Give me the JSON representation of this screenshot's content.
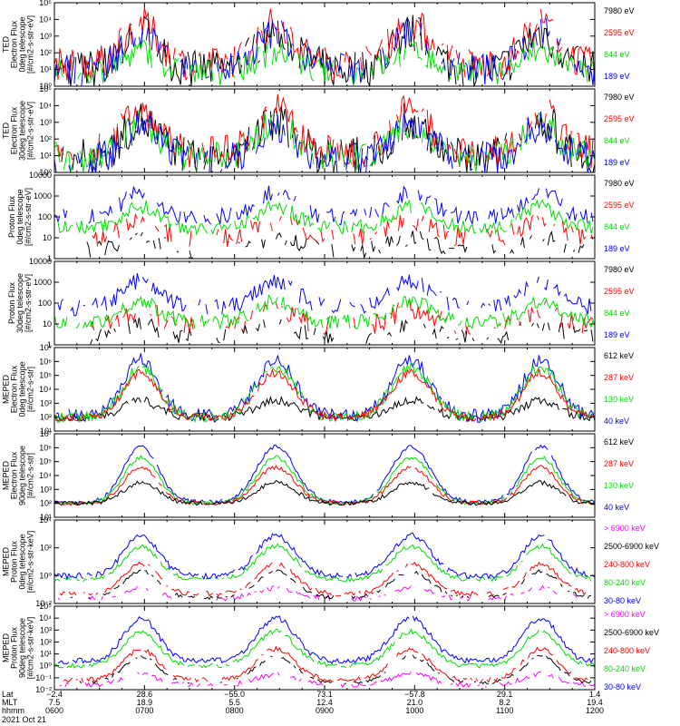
{
  "colors": {
    "blue": "#0000ff",
    "green": "#00dd00",
    "red": "#ff0000",
    "black": "#000000",
    "magenta": "#ff00ff",
    "axis": "#000000"
  },
  "chart_data": [
    {
      "type": "line",
      "ylabel": [
        "TED",
        "Electron Flux",
        "0deg telescope",
        "[#/cm2-s-str-eV]"
      ],
      "ylim": [
        1,
        100000
      ],
      "log": true,
      "y_ticks": [
        "10⁰",
        "10¹",
        "10²",
        "10³",
        "10⁴",
        "10⁵"
      ],
      "series": [
        {
          "name": "7980 eV",
          "color": "#000000",
          "base": 1.0,
          "amp": 2.2,
          "noise": 1.2,
          "gap": 0.25
        },
        {
          "name": "2595 eV",
          "color": "#ff0000",
          "base": 1.3,
          "amp": 2.5,
          "noise": 1.0,
          "gap": 0.3
        },
        {
          "name": "844 eV",
          "color": "#00dd00",
          "base": 0.8,
          "amp": 1.3,
          "noise": 0.8,
          "gap": 0.35
        },
        {
          "name": "189 eV",
          "color": "#0000ff",
          "base": 1.0,
          "amp": 2.2,
          "noise": 1.0,
          "gap": 0.4
        }
      ]
    },
    {
      "type": "line",
      "ylabel": [
        "TED",
        "Electron Flux",
        "30deg telescope",
        "[#/cm2-s-str-eV]"
      ],
      "ylim": [
        1,
        100000
      ],
      "log": true,
      "y_ticks": [
        "10⁰",
        "10¹",
        "10²",
        "10³",
        "10⁴",
        "10⁵"
      ],
      "series": [
        {
          "name": "7980 eV",
          "color": "#000000",
          "base": 0.9,
          "amp": 2.2,
          "noise": 1.2,
          "gap": 0.3
        },
        {
          "name": "2595 eV",
          "color": "#ff0000",
          "base": 1.2,
          "amp": 2.6,
          "noise": 1.0,
          "gap": 0.3
        },
        {
          "name": "844 eV",
          "color": "#00dd00",
          "base": 0.9,
          "amp": 2.0,
          "noise": 0.9,
          "gap": 0.35
        },
        {
          "name": "189 eV",
          "color": "#0000ff",
          "base": 0.8,
          "amp": 2.0,
          "noise": 1.0,
          "gap": 0.4
        }
      ]
    },
    {
      "type": "line",
      "ylabel": [
        "Proton Flux",
        "0deg telescope",
        "[#/cm2-s-str-eV]"
      ],
      "ylim": [
        1,
        10000
      ],
      "log": true,
      "y_ticks": [
        "1",
        "10",
        "100",
        "1000",
        "10000"
      ],
      "series": [
        {
          "name": "7980 eV",
          "color": "#000000",
          "base": 0.4,
          "amp": 0.6,
          "noise": 0.4,
          "gap": 0.85
        },
        {
          "name": "2595 eV",
          "color": "#ff0000",
          "base": 1.0,
          "amp": 0.8,
          "noise": 0.5,
          "gap": 0.8
        },
        {
          "name": "189 eV",
          "color": "#0000ff",
          "base": 2.0,
          "amp": 1.2,
          "noise": 0.4,
          "gap": 0.45
        },
        {
          "name": "844 eV",
          "color": "#00dd00",
          "base": 1.5,
          "amp": 1.0,
          "noise": 0.35,
          "gap": 0.15
        }
      ]
    },
    {
      "type": "line",
      "ylabel": [
        "Proton Flux",
        "30deg telescope",
        "[#/cm2-s-str-eV]"
      ],
      "ylim": [
        1,
        10000
      ],
      "log": true,
      "y_ticks": [
        "1",
        "10",
        "100",
        "1000",
        "10000"
      ],
      "series": [
        {
          "name": "7980 eV",
          "color": "#000000",
          "base": 0.4,
          "amp": 0.6,
          "noise": 0.4,
          "gap": 0.85
        },
        {
          "name": "2595 eV",
          "color": "#ff0000",
          "base": 0.9,
          "amp": 0.8,
          "noise": 0.5,
          "gap": 0.8
        },
        {
          "name": "189 eV",
          "color": "#0000ff",
          "base": 1.8,
          "amp": 1.3,
          "noise": 0.4,
          "gap": 0.45
        },
        {
          "name": "844 eV",
          "color": "#00dd00",
          "base": 1.1,
          "amp": 1.0,
          "noise": 0.35,
          "gap": 0.15
        }
      ]
    },
    {
      "type": "line",
      "ylabel": [
        "MEPED",
        "Electron Flux",
        "0deg telescope",
        "[#/cm2-s-str]"
      ],
      "ylim": [
        10,
        10000000
      ],
      "log": true,
      "y_ticks": [
        "10¹",
        "10²",
        "10³",
        "10⁴",
        "10⁵",
        "10⁶",
        "10⁷"
      ],
      "series": [
        {
          "name": "612 keV",
          "color": "#000000",
          "base": 2.0,
          "amp": 1.2,
          "noise": 0.3,
          "gap": 0.05
        },
        {
          "name": "40 keV",
          "color": "#0000ff",
          "base": 2.1,
          "amp": 4.0,
          "noise": 0.5,
          "gap": 0.05
        },
        {
          "name": "130 keV",
          "color": "#00dd00",
          "base": 2.0,
          "amp": 3.6,
          "noise": 0.4,
          "gap": 0.05
        },
        {
          "name": "287 keV",
          "color": "#ff0000",
          "base": 2.0,
          "amp": 3.2,
          "noise": 0.3,
          "gap": 0.05
        }
      ]
    },
    {
      "type": "line",
      "ylabel": [
        "MEPED",
        "Electron Flux",
        "90deg telescope",
        "[#/cm2-s-str]"
      ],
      "ylim": [
        10,
        10000000
      ],
      "log": true,
      "y_ticks": [
        "10¹",
        "10²",
        "10³",
        "10⁴",
        "10⁵",
        "10⁶",
        "10⁷"
      ],
      "series": [
        {
          "name": "40 keV",
          "color": "#0000ff",
          "base": 2.1,
          "amp": 4.0,
          "noise": 0.15,
          "gap": 0.05
        },
        {
          "name": "130 keV",
          "color": "#00dd00",
          "base": 2.0,
          "amp": 3.3,
          "noise": 0.15,
          "gap": 0.05
        },
        {
          "name": "287 keV",
          "color": "#ff0000",
          "base": 2.0,
          "amp": 2.6,
          "noise": 0.15,
          "gap": 0.05
        },
        {
          "name": "612 keV",
          "color": "#000000",
          "base": 2.0,
          "amp": 1.5,
          "noise": 0.15,
          "gap": 0.05
        }
      ]
    },
    {
      "type": "line",
      "ylabel": [
        "MEPED",
        "Proton Flux",
        "0deg telescope",
        "[#/cm2-s-str-keV]"
      ],
      "ylim": [
        0.01,
        100000
      ],
      "log": true,
      "y_ticks": [
        "10⁻²",
        "10⁰",
        "10²",
        "10⁴"
      ],
      "series": [
        {
          "name": "> 6900 keV",
          "color": "#ff00ff",
          "base": -1.6,
          "amp": 0.9,
          "noise": 0.2,
          "gap": 0.75
        },
        {
          "name": "2500-6900 keV",
          "color": "#000000",
          "base": -1.5,
          "amp": 2.2,
          "noise": 0.15,
          "gap": 0.7
        },
        {
          "name": "240-800 keV",
          "color": "#ff0000",
          "base": -1.2,
          "amp": 2.5,
          "noise": 0.2,
          "gap": 0.4
        },
        {
          "name": "80-240 keV",
          "color": "#00dd00",
          "base": 0.0,
          "amp": 2.8,
          "noise": 0.2,
          "gap": 0.1
        },
        {
          "name": "30-80 keV",
          "color": "#0000ff",
          "base": 0.3,
          "amp": 3.4,
          "noise": 0.25,
          "gap": 0.05
        }
      ]
    },
    {
      "type": "line",
      "ylabel": [
        "MEPED",
        "Proton Flux",
        "90deg telescope",
        "[#/cm2-s-str-keV]"
      ],
      "ylim": [
        0.01,
        100000
      ],
      "log": true,
      "y_ticks": [
        "10⁻²",
        "10⁻¹",
        "10⁰",
        "10¹",
        "10²",
        "10³",
        "10⁴",
        "10⁵"
      ],
      "series": [
        {
          "name": "> 6900 keV",
          "color": "#ff00ff",
          "base": -1.6,
          "amp": 0.9,
          "noise": 0.2,
          "gap": 0.6
        },
        {
          "name": "2500-6900 keV",
          "color": "#000000",
          "base": -1.4,
          "amp": 2.2,
          "noise": 0.15,
          "gap": 0.6
        },
        {
          "name": "240-800 keV",
          "color": "#ff0000",
          "base": -1.2,
          "amp": 2.6,
          "noise": 0.2,
          "gap": 0.3
        },
        {
          "name": "80-240 keV",
          "color": "#00dd00",
          "base": 0.0,
          "amp": 2.9,
          "noise": 0.2,
          "gap": 0.1
        },
        {
          "name": "30-80 keV",
          "color": "#0000ff",
          "base": 0.4,
          "amp": 3.6,
          "noise": 0.25,
          "gap": 0.05
        }
      ]
    }
  ],
  "x_axis": {
    "row_labels": [
      "Lat",
      "MLT",
      "hhmm",
      "2021 Oct 21"
    ],
    "ticks": [
      {
        "lat": "−2.4",
        "mlt": "7.5",
        "hhmm": "0600"
      },
      {
        "lat": "28.6",
        "mlt": "18.9",
        "hhmm": "0700"
      },
      {
        "lat": "−55.0",
        "mlt": "5.5",
        "hhmm": "0800"
      },
      {
        "lat": "73.1",
        "mlt": "12.4",
        "hhmm": "0900"
      },
      {
        "lat": "−57.8",
        "mlt": "21.0",
        "hhmm": "1000"
      },
      {
        "lat": "29.1",
        "mlt": "8.2",
        "hhmm": "1100"
      },
      {
        "lat": "1.4",
        "mlt": "19.4",
        "hhmm": "1200"
      }
    ]
  },
  "passes": [
    {
      "center": 0.16,
      "width": 0.045
    },
    {
      "center": 0.41,
      "width": 0.05
    },
    {
      "center": 0.66,
      "width": 0.05
    },
    {
      "center": 0.9,
      "width": 0.045
    }
  ]
}
